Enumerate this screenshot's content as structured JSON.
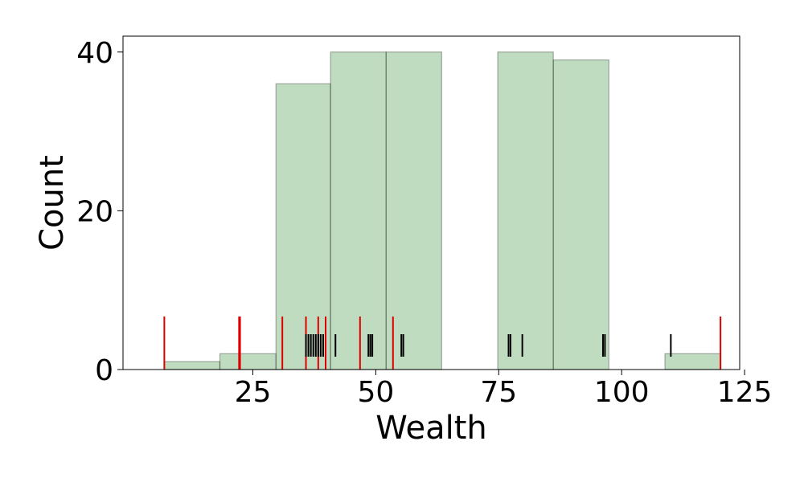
{
  "chart_data": {
    "type": "bar",
    "title": "",
    "xlabel": "Wealth",
    "ylabel": "Count",
    "xlim": [
      -1.4,
      124.0
    ],
    "ylim": [
      0,
      42
    ],
    "grid": false,
    "histogram": {
      "bins": [
        {
          "x0": 7.0,
          "x1": 18.3,
          "count": 1
        },
        {
          "x0": 18.3,
          "x1": 29.7,
          "count": 2
        },
        {
          "x0": 29.7,
          "x1": 40.8,
          "count": 36
        },
        {
          "x0": 40.8,
          "x1": 52.1,
          "count": 40
        },
        {
          "x0": 52.1,
          "x1": 63.4,
          "count": 40
        },
        {
          "x0": 63.4,
          "x1": 74.8,
          "count": 0
        },
        {
          "x0": 74.8,
          "x1": 86.1,
          "count": 40
        },
        {
          "x0": 86.1,
          "x1": 97.4,
          "count": 39
        },
        {
          "x0": 97.4,
          "x1": 108.8,
          "count": 0
        },
        {
          "x0": 108.8,
          "x1": 120.1,
          "count": 2
        }
      ],
      "fill_color": "#2e8b2e",
      "fill_opacity": 0.3,
      "edge_color": "#000000"
    },
    "rug_red": {
      "color": "#dd0000",
      "values": [
        7.0,
        22.2,
        22.4,
        31.0,
        35.8,
        38.3,
        39.8,
        46.8,
        53.5,
        120.1
      ]
    },
    "rug_black": {
      "color": "#000000",
      "values": [
        35.8,
        36.3,
        36.8,
        37.3,
        37.8,
        38.3,
        38.8,
        39.3,
        41.8,
        48.5,
        48.9,
        49.3,
        55.2,
        55.6,
        77.0,
        77.4,
        79.8,
        96.2,
        96.6,
        110.0
      ]
    },
    "x_ticks": [
      {
        "value": 25,
        "label": "25"
      },
      {
        "value": 50,
        "label": "50"
      },
      {
        "value": 75,
        "label": "75"
      },
      {
        "value": 100,
        "label": "100"
      },
      {
        "value": 125,
        "label": "125"
      }
    ],
    "y_ticks": [
      {
        "value": 0,
        "label": "0"
      },
      {
        "value": 20,
        "label": "20"
      },
      {
        "value": 40,
        "label": "40"
      }
    ]
  }
}
